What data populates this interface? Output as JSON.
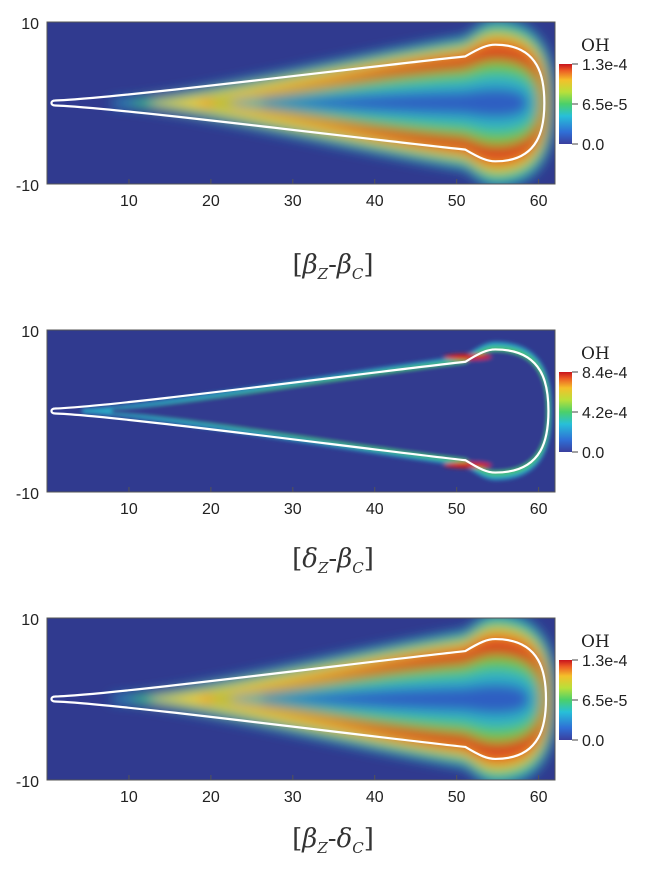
{
  "chart_data": [
    {
      "type": "heatmap",
      "variable": "OH",
      "caption": {
        "a": "β",
        "a_sub": "Z",
        "b": "β",
        "b_sub": "C"
      },
      "xticks": [
        "10",
        "20",
        "30",
        "40",
        "50",
        "60"
      ],
      "xtick_values": [
        10,
        20,
        30,
        40,
        50,
        60
      ],
      "yticks": [
        "10",
        "-10"
      ],
      "xlim": [
        0,
        62
      ],
      "ylim": [
        -10,
        10
      ],
      "colorbar": {
        "max": "1.3e-4",
        "mid": "6.5e-5",
        "min": "0.0"
      },
      "flame": {
        "tip_x": 1,
        "base_x": 53.5,
        "head_radius": 7.2,
        "front_x": 60.7
      },
      "field": "broad"
    },
    {
      "type": "heatmap",
      "variable": "OH",
      "caption": {
        "a": "δ",
        "a_sub": "Z",
        "b": "β",
        "b_sub": "C"
      },
      "xticks": [
        "10",
        "20",
        "30",
        "40",
        "50",
        "60"
      ],
      "xtick_values": [
        10,
        20,
        30,
        40,
        50,
        60
      ],
      "yticks": [
        "10",
        "-10"
      ],
      "xlim": [
        0,
        62
      ],
      "ylim": [
        -10,
        10
      ],
      "colorbar": {
        "max": "8.4e-4",
        "mid": "4.2e-4",
        "min": "0.0"
      },
      "flame": {
        "tip_x": 1,
        "base_x": 53.5,
        "head_radius": 7.6,
        "front_x": 61.2
      },
      "field": "thin"
    },
    {
      "type": "heatmap",
      "variable": "OH",
      "caption": {
        "a": "β",
        "a_sub": "Z",
        "b": "δ",
        "b_sub": "C"
      },
      "xticks": [
        "10",
        "20",
        "30",
        "40",
        "50",
        "60"
      ],
      "xtick_values": [
        10,
        20,
        30,
        40,
        50,
        60
      ],
      "yticks": [
        "10",
        "-10"
      ],
      "xlim": [
        0,
        62
      ],
      "ylim": [
        -10,
        10
      ],
      "colorbar": {
        "max": "1.3e-4",
        "mid": "6.5e-5",
        "min": "0.0"
      },
      "flame": {
        "tip_x": 1,
        "base_x": 53.5,
        "head_radius": 7.4,
        "front_x": 60.9
      },
      "field": "broad"
    }
  ]
}
